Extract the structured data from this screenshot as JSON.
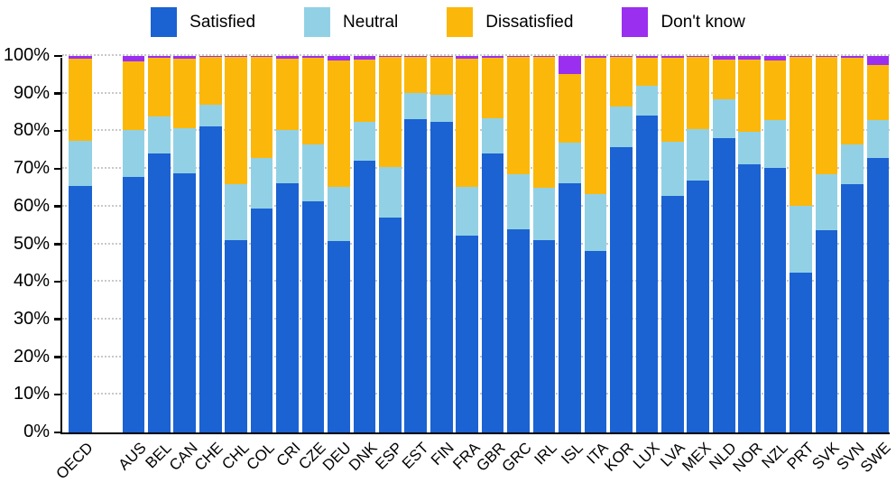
{
  "chart_data": {
    "type": "bar",
    "stacked": true,
    "unit": "%",
    "ylim": [
      0,
      100
    ],
    "grid": "dotted-horizontal",
    "legend_position": "top-center",
    "y_ticks": [
      "0%",
      "10%",
      "20%",
      "30%",
      "40%",
      "50%",
      "60%",
      "70%",
      "80%",
      "90%",
      "100%"
    ],
    "categories": [
      "OECD",
      "AUS",
      "BEL",
      "CAN",
      "CHE",
      "CHL",
      "COL",
      "CRI",
      "CZE",
      "DEU",
      "DNK",
      "ESP",
      "EST",
      "FIN",
      "FRA",
      "GBR",
      "GRC",
      "IRL",
      "ISL",
      "ITA",
      "KOR",
      "LUX",
      "LVA",
      "MEX",
      "NLD",
      "NOR",
      "NZL",
      "PRT",
      "SVK",
      "SVN",
      "SWE"
    ],
    "separate_first_category": true,
    "series": [
      {
        "name": "Satisfied",
        "color": "#1B62D2",
        "values": [
          65.5,
          67.8,
          74.2,
          68.8,
          81.4,
          51.0,
          59.5,
          66.3,
          61.5,
          50.8,
          72.3,
          57.0,
          83.2,
          82.6,
          52.4,
          74.0,
          54.0,
          51.0,
          66.2,
          48.2,
          75.8,
          84.2,
          62.8,
          66.8,
          78.2,
          71.2,
          70.3,
          42.5,
          53.7,
          66.0,
          73.0
        ]
      },
      {
        "name": "Neutral",
        "color": "#92D1E5",
        "values": [
          12.0,
          12.6,
          9.7,
          12.1,
          5.6,
          15.0,
          13.5,
          14.0,
          15.0,
          14.5,
          10.2,
          13.5,
          7.0,
          7.2,
          12.8,
          9.5,
          14.7,
          14.0,
          10.7,
          15.2,
          10.7,
          7.8,
          14.5,
          13.7,
          10.3,
          8.6,
          12.7,
          17.7,
          15.0,
          10.5,
          10.0
        ]
      },
      {
        "name": "Dissatisfied",
        "color": "#FBB80A",
        "values": [
          21.8,
          18.1,
          15.6,
          18.3,
          12.7,
          33.8,
          26.7,
          18.9,
          23.0,
          33.4,
          16.5,
          29.2,
          9.6,
          9.9,
          34.0,
          16.0,
          31.0,
          34.8,
          18.4,
          36.1,
          13.2,
          7.5,
          22.2,
          19.2,
          10.5,
          19.2,
          15.8,
          39.6,
          31.1,
          23.0,
          14.6
        ]
      },
      {
        "name": "Don't know",
        "color": "#9A2FF0",
        "values": [
          0.7,
          1.5,
          0.5,
          0.8,
          0.3,
          0.2,
          0.3,
          0.8,
          0.5,
          1.3,
          1.0,
          0.3,
          0.2,
          0.3,
          0.8,
          0.5,
          0.3,
          0.2,
          4.7,
          0.5,
          0.3,
          0.5,
          0.5,
          0.3,
          1.0,
          1.0,
          1.2,
          0.2,
          0.2,
          0.5,
          2.4
        ]
      }
    ]
  },
  "colors": {
    "axis": "#000000",
    "gridline": "#c9c9c9",
    "background": "#ffffff"
  }
}
